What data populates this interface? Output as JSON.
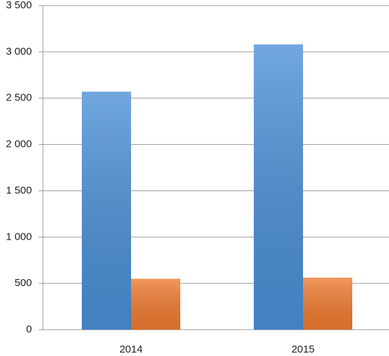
{
  "chart_data": {
    "type": "bar",
    "categories": [
      "2014",
      "2015"
    ],
    "series": [
      {
        "color": "#4a8fd6",
        "values": [
          2570,
          3080
        ]
      },
      {
        "color": "#ee7a30",
        "values": [
          550,
          562
        ]
      }
    ],
    "ylim": [
      0,
      3500
    ],
    "yticks": [
      0,
      500,
      {
        "value": 1000,
        "label": "1 000"
      },
      {
        "value": 1500,
        "label": "1 500"
      },
      {
        "value": 2000,
        "label": "2 000"
      },
      {
        "value": 2500,
        "label": "2 500"
      },
      {
        "value": 3000,
        "label": "3 000"
      },
      {
        "value": 3500,
        "label": "3 500"
      }
    ],
    "grid": true
  }
}
